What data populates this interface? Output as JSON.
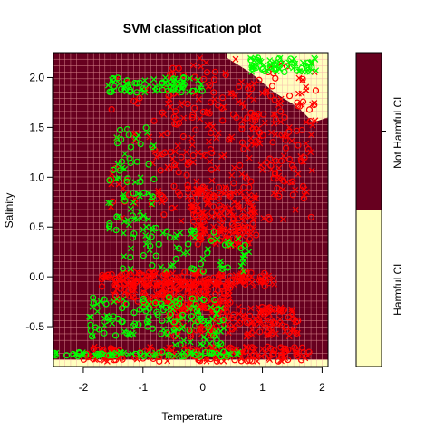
{
  "chart_data": {
    "type": "scatter",
    "title": "SVM classification plot",
    "xlabel": "Temperature",
    "ylabel": "Salinity",
    "xlim": [
      -2.5,
      2.1
    ],
    "ylim": [
      -0.9,
      2.25
    ],
    "x_ticks": [
      -2,
      -1,
      0,
      1,
      2
    ],
    "y_ticks": [
      -0.5,
      0.0,
      0.5,
      1.0,
      1.5,
      2.0
    ],
    "x_tick_labels": [
      "-2",
      "-1",
      "0",
      "1",
      "2"
    ],
    "y_tick_labels": [
      "-0.5",
      "0.0",
      "0.5",
      "1.0",
      "1.5",
      "2.0"
    ],
    "grid": true,
    "grid_color": "#f4a6a6",
    "background_regions": [
      {
        "class": "Not Harmful CL",
        "color": "#67001f"
      },
      {
        "class": "Harmful CL",
        "color": "#ffffbf"
      }
    ],
    "harmful_region_polygon": [
      [
        0.4,
        2.25
      ],
      [
        2.1,
        2.25
      ],
      [
        2.1,
        1.6
      ],
      [
        1.85,
        1.55
      ],
      [
        1.6,
        1.7
      ],
      [
        1.2,
        1.85
      ],
      [
        0.8,
        2.05
      ],
      [
        0.4,
        2.2
      ]
    ],
    "bottom_strip_ymax": -0.83,
    "legend": {
      "position": "right",
      "labels": [
        "Harmful CL",
        "Not Harmful CL"
      ],
      "colors": [
        "#ffffbf",
        "#67001f"
      ],
      "split_fraction": 0.5
    },
    "series": [
      {
        "name": "Not Harmful CL",
        "color": "#ff0000",
        "clusters": [
          {
            "x": [
              -1.55,
              1.9
            ],
            "y": [
              0.55,
              2.05
            ]
          },
          {
            "x": [
              -0.7,
              1.9
            ],
            "y": [
              0.8,
              2.2
            ]
          },
          {
            "x": [
              -1.7,
              1.2
            ],
            "y": [
              -0.1,
              0.05
            ]
          },
          {
            "x": [
              -2.0,
              1.8
            ],
            "y": [
              -0.85,
              -0.7
            ]
          },
          {
            "x": [
              -0.6,
              1.6
            ],
            "y": [
              -0.6,
              -0.3
            ]
          },
          {
            "x": [
              -1.5,
              0.5
            ],
            "y": [
              -0.3,
              -0.05
            ]
          },
          {
            "x": [
              -0.2,
              0.9
            ],
            "y": [
              0.3,
              0.9
            ]
          }
        ]
      },
      {
        "name": "Harmful CL",
        "color": "#00ff00",
        "clusters": [
          {
            "x": [
              -1.6,
              -0.8
            ],
            "y": [
              0.4,
              1.5
            ]
          },
          {
            "x": [
              -1.6,
              0.0
            ],
            "y": [
              1.85,
              2.0
            ]
          },
          {
            "x": [
              -2.5,
              0.6
            ],
            "y": [
              -0.8,
              -0.75
            ]
          },
          {
            "x": [
              -1.9,
              -0.5
            ],
            "y": [
              -0.6,
              -0.2
            ]
          },
          {
            "x": [
              -1.4,
              0.8
            ],
            "y": [
              0.05,
              0.5
            ]
          },
          {
            "x": [
              0.8,
              1.9
            ],
            "y": [
              2.05,
              2.2
            ]
          },
          {
            "x": [
              -0.6,
              0.4
            ],
            "y": [
              -0.7,
              -0.2
            ]
          }
        ]
      }
    ]
  }
}
